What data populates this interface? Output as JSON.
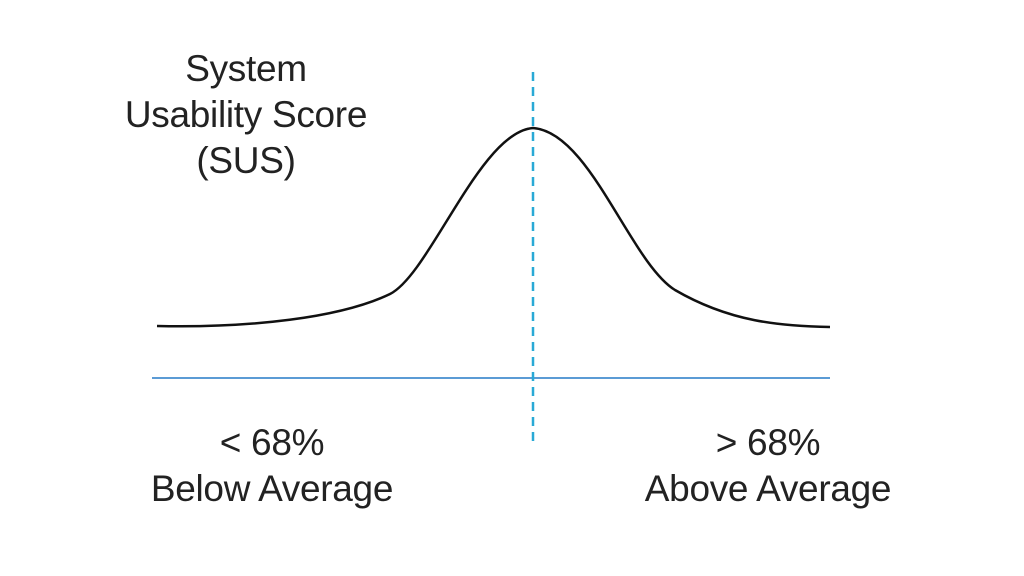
{
  "title": {
    "line1": "System",
    "line2": "Usability Score",
    "line3": "(SUS)"
  },
  "left_label": {
    "value": "< 68%",
    "text": "Below Average"
  },
  "right_label": {
    "value": "> 68%",
    "text": "Above Average"
  },
  "colors": {
    "curve": "#111111",
    "baseline": "#5b9bd5",
    "threshold": "#29a9d6",
    "text": "#222222"
  }
}
